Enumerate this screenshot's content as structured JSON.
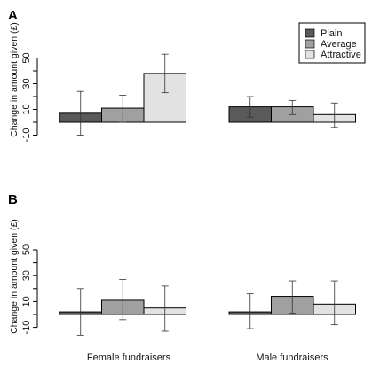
{
  "chart_data": [
    {
      "type": "bar",
      "panel": "A",
      "ylabel": "Change in amount given (£)",
      "yticks": [
        -10,
        10,
        30,
        50
      ],
      "ylim": [
        -15,
        60
      ],
      "categories": [
        "Female fundraisers",
        "Male fundraisers"
      ],
      "series": [
        {
          "name": "Plain",
          "color": "#5a5a5a",
          "values": [
            7,
            12
          ],
          "err_low": [
            -10,
            4
          ],
          "err_high": [
            24,
            20
          ]
        },
        {
          "name": "Average",
          "color": "#a0a0a0",
          "values": [
            11,
            12
          ],
          "err_low": [
            0,
            6
          ],
          "err_high": [
            21,
            17
          ]
        },
        {
          "name": "Attractive",
          "color": "#e2e2e2",
          "values": [
            38,
            6
          ],
          "err_low": [
            23,
            -4
          ],
          "err_high": [
            53,
            15
          ]
        }
      ],
      "legend": {
        "position": "top-right",
        "entries": [
          "Plain",
          "Average",
          "Attractive"
        ]
      },
      "grid": false
    },
    {
      "type": "bar",
      "panel": "B",
      "ylabel": "Change in amount given (£)",
      "yticks": [
        -10,
        10,
        30,
        50
      ],
      "ylim": [
        -15,
        60
      ],
      "categories": [
        "Female fundraisers",
        "Male fundraisers"
      ],
      "series": [
        {
          "name": "Plain",
          "color": "#5a5a5a",
          "values": [
            2,
            2
          ],
          "err_low": [
            -16,
            -11
          ],
          "err_high": [
            20,
            16
          ]
        },
        {
          "name": "Average",
          "color": "#a0a0a0",
          "values": [
            11,
            14
          ],
          "err_low": [
            -4,
            1
          ],
          "err_high": [
            27,
            26
          ]
        },
        {
          "name": "Attractive",
          "color": "#e2e2e2",
          "values": [
            5,
            8
          ],
          "err_low": [
            -13,
            -8
          ],
          "err_high": [
            22,
            26
          ]
        }
      ],
      "grid": false
    }
  ]
}
